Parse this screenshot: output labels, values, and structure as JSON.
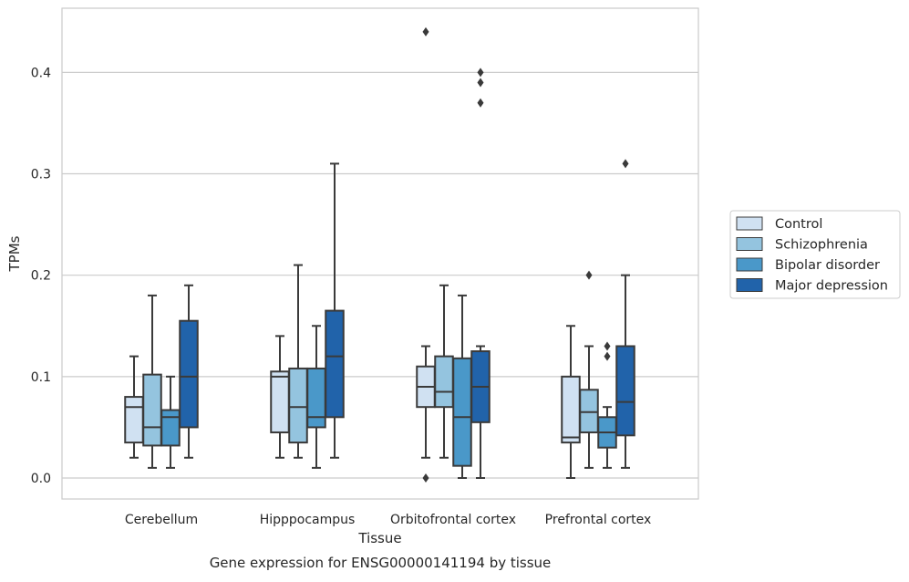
{
  "caption": "Gene expression for ENSG00000141194 by tissue",
  "chart_data": {
    "type": "boxplot",
    "xlabel": "Tissue",
    "ylabel": "TPMs",
    "ylim": [
      -0.021,
      0.463
    ],
    "yticks": [
      0.0,
      0.1,
      0.2,
      0.3,
      0.4
    ],
    "ytick_labels": [
      "0.0",
      "0.1",
      "0.2",
      "0.3",
      "0.4"
    ],
    "grid": true,
    "legend_position": "right, outside plot",
    "categories": [
      "Cerebellum",
      "Hipppocampus",
      "Orbitofrontal cortex",
      "Prefrontal cortex"
    ],
    "series": [
      {
        "name": "Control",
        "color": "#d0e1f2",
        "boxes": [
          {
            "whislo": 0.02,
            "q1": 0.035,
            "med": 0.07,
            "q3": 0.08,
            "whishi": 0.12,
            "fliers": []
          },
          {
            "whislo": 0.02,
            "q1": 0.045,
            "med": 0.1,
            "q3": 0.105,
            "whishi": 0.14,
            "fliers": []
          },
          {
            "whislo": 0.02,
            "q1": 0.07,
            "med": 0.09,
            "q3": 0.11,
            "whishi": 0.13,
            "fliers": [
              0.44,
              0.0
            ]
          },
          {
            "whislo": 0.0,
            "q1": 0.035,
            "med": 0.04,
            "q3": 0.1,
            "whishi": 0.15,
            "fliers": []
          }
        ]
      },
      {
        "name": "Schizophrenia",
        "color": "#94c4df",
        "boxes": [
          {
            "whislo": 0.01,
            "q1": 0.032,
            "med": 0.05,
            "q3": 0.102,
            "whishi": 0.18,
            "fliers": []
          },
          {
            "whislo": 0.02,
            "q1": 0.035,
            "med": 0.07,
            "q3": 0.108,
            "whishi": 0.21,
            "fliers": []
          },
          {
            "whislo": 0.02,
            "q1": 0.07,
            "med": 0.085,
            "q3": 0.12,
            "whishi": 0.19,
            "fliers": []
          },
          {
            "whislo": 0.01,
            "q1": 0.045,
            "med": 0.065,
            "q3": 0.087,
            "whishi": 0.13,
            "fliers": [
              0.2
            ]
          }
        ]
      },
      {
        "name": "Bipolar disorder",
        "color": "#4a98c9",
        "boxes": [
          {
            "whislo": 0.01,
            "q1": 0.032,
            "med": 0.06,
            "q3": 0.067,
            "whishi": 0.1,
            "fliers": []
          },
          {
            "whislo": 0.01,
            "q1": 0.05,
            "med": 0.06,
            "q3": 0.108,
            "whishi": 0.15,
            "fliers": []
          },
          {
            "whislo": 0.0,
            "q1": 0.012,
            "med": 0.06,
            "q3": 0.118,
            "whishi": 0.18,
            "fliers": []
          },
          {
            "whislo": 0.01,
            "q1": 0.03,
            "med": 0.045,
            "q3": 0.06,
            "whishi": 0.07,
            "fliers": [
              0.13,
              0.12
            ]
          }
        ]
      },
      {
        "name": "Major depression",
        "color": "#2163aa",
        "boxes": [
          {
            "whislo": 0.02,
            "q1": 0.05,
            "med": 0.1,
            "q3": 0.155,
            "whishi": 0.19,
            "fliers": []
          },
          {
            "whislo": 0.02,
            "q1": 0.06,
            "med": 0.12,
            "q3": 0.165,
            "whishi": 0.31,
            "fliers": []
          },
          {
            "whislo": 0.0,
            "q1": 0.055,
            "med": 0.09,
            "q3": 0.125,
            "whishi": 0.13,
            "fliers": [
              0.4,
              0.39,
              0.37
            ]
          },
          {
            "whislo": 0.01,
            "q1": 0.042,
            "med": 0.075,
            "q3": 0.13,
            "whishi": 0.2,
            "fliers": [
              0.31
            ]
          }
        ]
      }
    ]
  }
}
